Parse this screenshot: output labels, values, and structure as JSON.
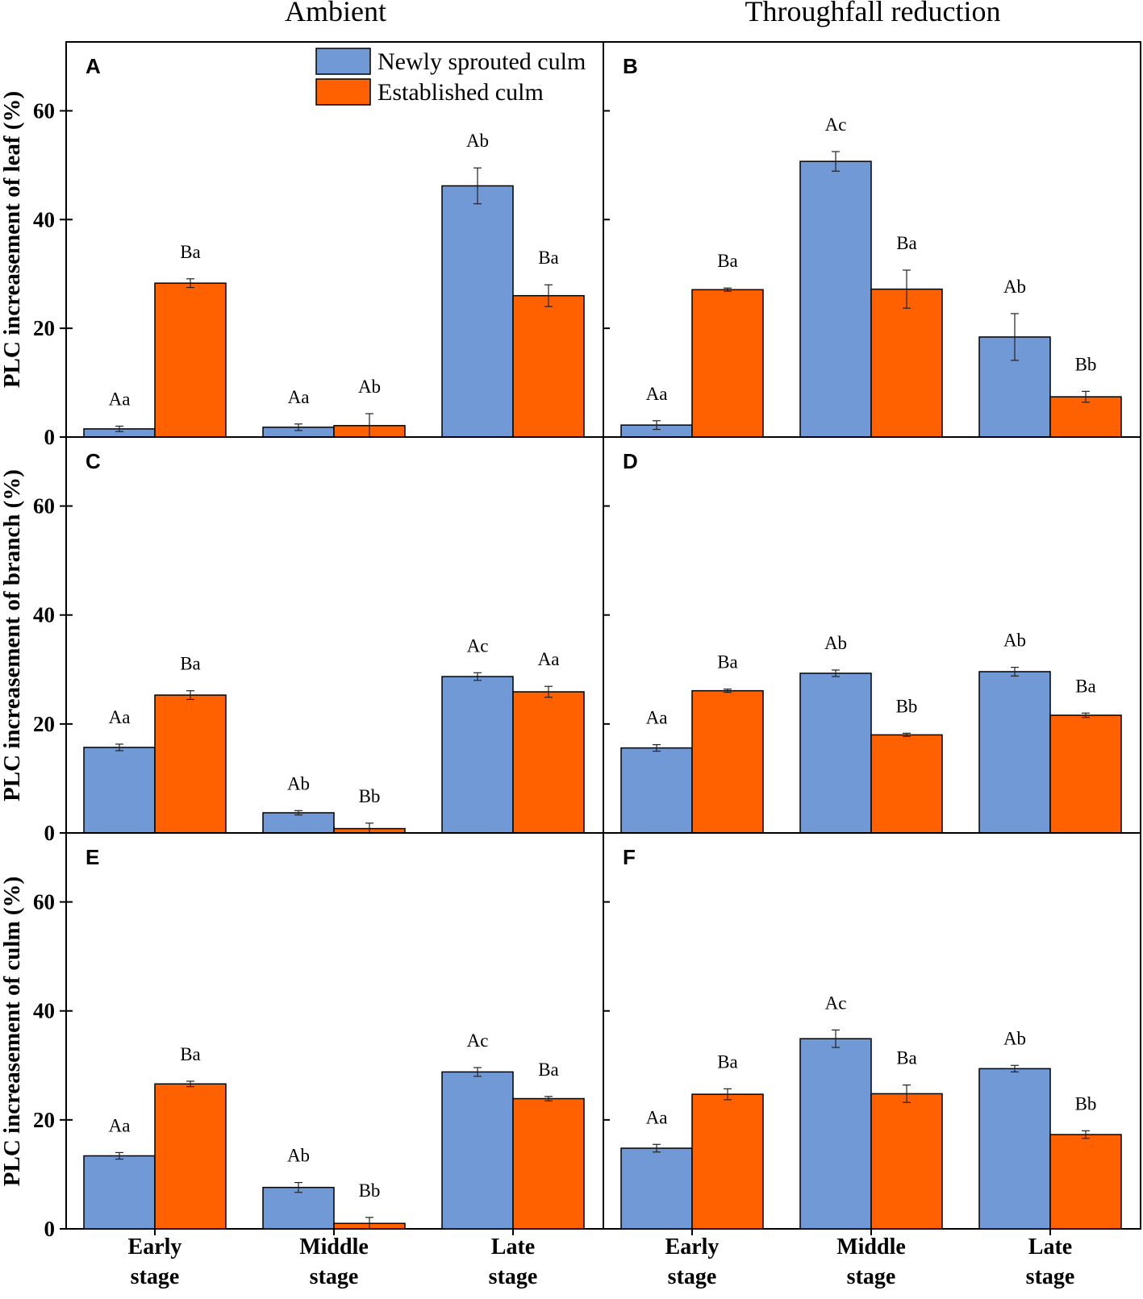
{
  "figure": {
    "column_titles": [
      "Ambient",
      "Throughfall reduction"
    ],
    "row_ylabels": [
      "PLC increasement of  leaf (%)",
      "PLC increasement of branch (%)",
      "PLC increasement of culm (%)"
    ],
    "category_lines": [
      [
        "Early",
        "stage"
      ],
      [
        "Middle",
        "stage"
      ],
      [
        "Late",
        "stage"
      ]
    ],
    "legend": [
      "Newly sprouted culm",
      "Established  culm"
    ],
    "colors": {
      "newly": "#7099d6",
      "established": "#ff6000",
      "axis": "#000000"
    }
  },
  "chart_data": [
    {
      "type": "bar",
      "panel": "A",
      "column": "Ambient",
      "row": "leaf",
      "categories": [
        "Early stage",
        "Middle stage",
        "Late stage"
      ],
      "ylabel": "PLC increasement of  leaf (%)",
      "ylim": [
        0,
        70
      ],
      "yticks": [
        0,
        20,
        40,
        60
      ],
      "series": [
        {
          "name": "Newly sprouted culm",
          "values": [
            1.5,
            1.8,
            46.2
          ],
          "errors": [
            0.5,
            0.6,
            3.3
          ],
          "labels": [
            "Aa",
            "Aa",
            "Ab"
          ]
        },
        {
          "name": "Established  culm",
          "values": [
            28.3,
            2.1,
            26.0
          ],
          "errors": [
            0.8,
            2.2,
            2.0
          ],
          "labels": [
            "Ba",
            "Ab",
            "Ba"
          ]
        }
      ]
    },
    {
      "type": "bar",
      "panel": "B",
      "column": "Throughfall reduction",
      "row": "leaf",
      "categories": [
        "Early stage",
        "Middle stage",
        "Late stage"
      ],
      "ylabel": "PLC increasement of  leaf (%)",
      "ylim": [
        0,
        70
      ],
      "yticks": [
        0,
        20,
        40,
        60
      ],
      "series": [
        {
          "name": "Newly sprouted culm",
          "values": [
            2.2,
            50.7,
            18.4
          ],
          "errors": [
            0.8,
            1.8,
            4.3
          ],
          "labels": [
            "Aa",
            "Ac",
            "Ab"
          ]
        },
        {
          "name": "Established  culm",
          "values": [
            27.1,
            27.2,
            7.4
          ],
          "errors": [
            0.3,
            3.5,
            1.0
          ],
          "labels": [
            "Ba",
            "Ba",
            "Bb"
          ]
        }
      ]
    },
    {
      "type": "bar",
      "panel": "C",
      "column": "Ambient",
      "row": "branch",
      "categories": [
        "Early stage",
        "Middle stage",
        "Late stage"
      ],
      "ylabel": "PLC increasement of branch (%)",
      "ylim": [
        0,
        70
      ],
      "yticks": [
        0,
        20,
        40,
        60
      ],
      "series": [
        {
          "name": "Newly sprouted culm",
          "values": [
            15.7,
            3.7,
            28.7
          ],
          "errors": [
            0.6,
            0.4,
            0.7
          ],
          "labels": [
            "Aa",
            "Ab",
            "Ac"
          ]
        },
        {
          "name": "Established  culm",
          "values": [
            25.3,
            0.8,
            25.9
          ],
          "errors": [
            0.8,
            1.0,
            1.0
          ],
          "labels": [
            "Ba",
            "Bb",
            "Aa"
          ]
        }
      ]
    },
    {
      "type": "bar",
      "panel": "D",
      "column": "Throughfall reduction",
      "row": "branch",
      "categories": [
        "Early stage",
        "Middle stage",
        "Late stage"
      ],
      "ylabel": "PLC increasement of branch (%)",
      "ylim": [
        0,
        70
      ],
      "yticks": [
        0,
        20,
        40,
        60
      ],
      "series": [
        {
          "name": "Newly sprouted culm",
          "values": [
            15.6,
            29.3,
            29.6
          ],
          "errors": [
            0.6,
            0.6,
            0.8
          ],
          "labels": [
            "Aa",
            "Ab",
            "Ab"
          ]
        },
        {
          "name": "Established  culm",
          "values": [
            26.1,
            18.0,
            21.6
          ],
          "errors": [
            0.3,
            0.3,
            0.4
          ],
          "labels": [
            "Ba",
            "Bb",
            "Ba"
          ]
        }
      ]
    },
    {
      "type": "bar",
      "panel": "E",
      "column": "Ambient",
      "row": "culm",
      "categories": [
        "Early stage",
        "Middle stage",
        "Late stage"
      ],
      "ylabel": "PLC increasement of culm (%)",
      "ylim": [
        0,
        70
      ],
      "yticks": [
        0,
        20,
        40,
        60
      ],
      "series": [
        {
          "name": "Newly sprouted culm",
          "values": [
            13.4,
            7.6,
            28.8
          ],
          "errors": [
            0.6,
            0.9,
            0.8
          ],
          "labels": [
            "Aa",
            "Ab",
            "Ac"
          ]
        },
        {
          "name": "Established  culm",
          "values": [
            26.6,
            1.0,
            23.9
          ],
          "errors": [
            0.5,
            1.1,
            0.4
          ],
          "labels": [
            "Ba",
            "Bb",
            "Ba"
          ]
        }
      ]
    },
    {
      "type": "bar",
      "panel": "F",
      "column": "Throughfall reduction",
      "row": "culm",
      "categories": [
        "Early stage",
        "Middle stage",
        "Late stage"
      ],
      "ylabel": "PLC increasement of culm (%)",
      "ylim": [
        0,
        70
      ],
      "yticks": [
        0,
        20,
        40,
        60
      ],
      "series": [
        {
          "name": "Newly sprouted culm",
          "values": [
            14.8,
            34.9,
            29.4
          ],
          "errors": [
            0.7,
            1.6,
            0.6
          ],
          "labels": [
            "Aa",
            "Ac",
            "Ab"
          ]
        },
        {
          "name": "Established  culm",
          "values": [
            24.7,
            24.8,
            17.3
          ],
          "errors": [
            1.0,
            1.6,
            0.7
          ],
          "labels": [
            "Ba",
            "Ba",
            "Bb"
          ]
        }
      ]
    }
  ]
}
